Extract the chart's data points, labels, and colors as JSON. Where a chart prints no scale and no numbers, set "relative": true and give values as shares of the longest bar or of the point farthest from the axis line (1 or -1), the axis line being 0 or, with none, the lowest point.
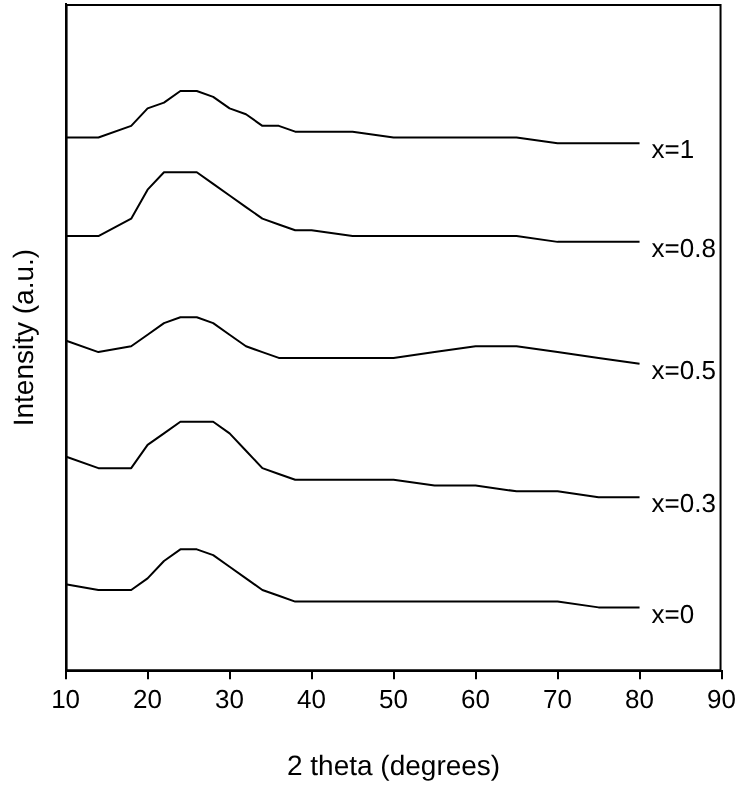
{
  "chart_data": {
    "type": "line",
    "xlabel": "2 theta (degrees)",
    "ylabel": "Intensity (a.u.)",
    "relative": true,
    "x": [
      10,
      14,
      18,
      20,
      22,
      24,
      26,
      28,
      30,
      32,
      34,
      36,
      38,
      40,
      45,
      50,
      55,
      60,
      65,
      70,
      75,
      80
    ],
    "xlim": [
      10,
      90
    ],
    "xticks": [
      10,
      20,
      30,
      40,
      50,
      60,
      70,
      80,
      90
    ],
    "grid": false,
    "legend": false,
    "marker": "none",
    "line_style": "solid",
    "series": [
      {
        "name": "x=1",
        "color": "#000000",
        "values": [
          0.92,
          0.92,
          0.94,
          0.97,
          0.98,
          1.0,
          1.0,
          0.99,
          0.97,
          0.96,
          0.94,
          0.94,
          0.93,
          0.93,
          0.93,
          0.92,
          0.92,
          0.92,
          0.92,
          0.91,
          0.91,
          0.91
        ]
      },
      {
        "name": "x=0.8",
        "color": "#000000",
        "values": [
          0.75,
          0.75,
          0.78,
          0.83,
          0.86,
          0.86,
          0.86,
          0.84,
          0.82,
          0.8,
          0.78,
          0.77,
          0.76,
          0.76,
          0.75,
          0.75,
          0.75,
          0.75,
          0.75,
          0.74,
          0.74,
          0.74
        ]
      },
      {
        "name": "x=0.5",
        "color": "#000000",
        "values": [
          0.57,
          0.55,
          0.56,
          0.58,
          0.6,
          0.61,
          0.61,
          0.6,
          0.58,
          0.56,
          0.55,
          0.54,
          0.54,
          0.54,
          0.54,
          0.54,
          0.55,
          0.56,
          0.56,
          0.55,
          0.54,
          0.53
        ]
      },
      {
        "name": "x=0.3",
        "color": "#000000",
        "values": [
          0.37,
          0.35,
          0.35,
          0.39,
          0.41,
          0.43,
          0.43,
          0.43,
          0.41,
          0.38,
          0.35,
          0.34,
          0.33,
          0.33,
          0.33,
          0.33,
          0.32,
          0.32,
          0.31,
          0.31,
          0.3,
          0.3
        ]
      },
      {
        "name": "x=0",
        "color": "#000000",
        "values": [
          0.15,
          0.14,
          0.14,
          0.16,
          0.19,
          0.21,
          0.21,
          0.2,
          0.18,
          0.16,
          0.14,
          0.13,
          0.12,
          0.12,
          0.12,
          0.12,
          0.12,
          0.12,
          0.12,
          0.12,
          0.11,
          0.11
        ]
      }
    ]
  }
}
